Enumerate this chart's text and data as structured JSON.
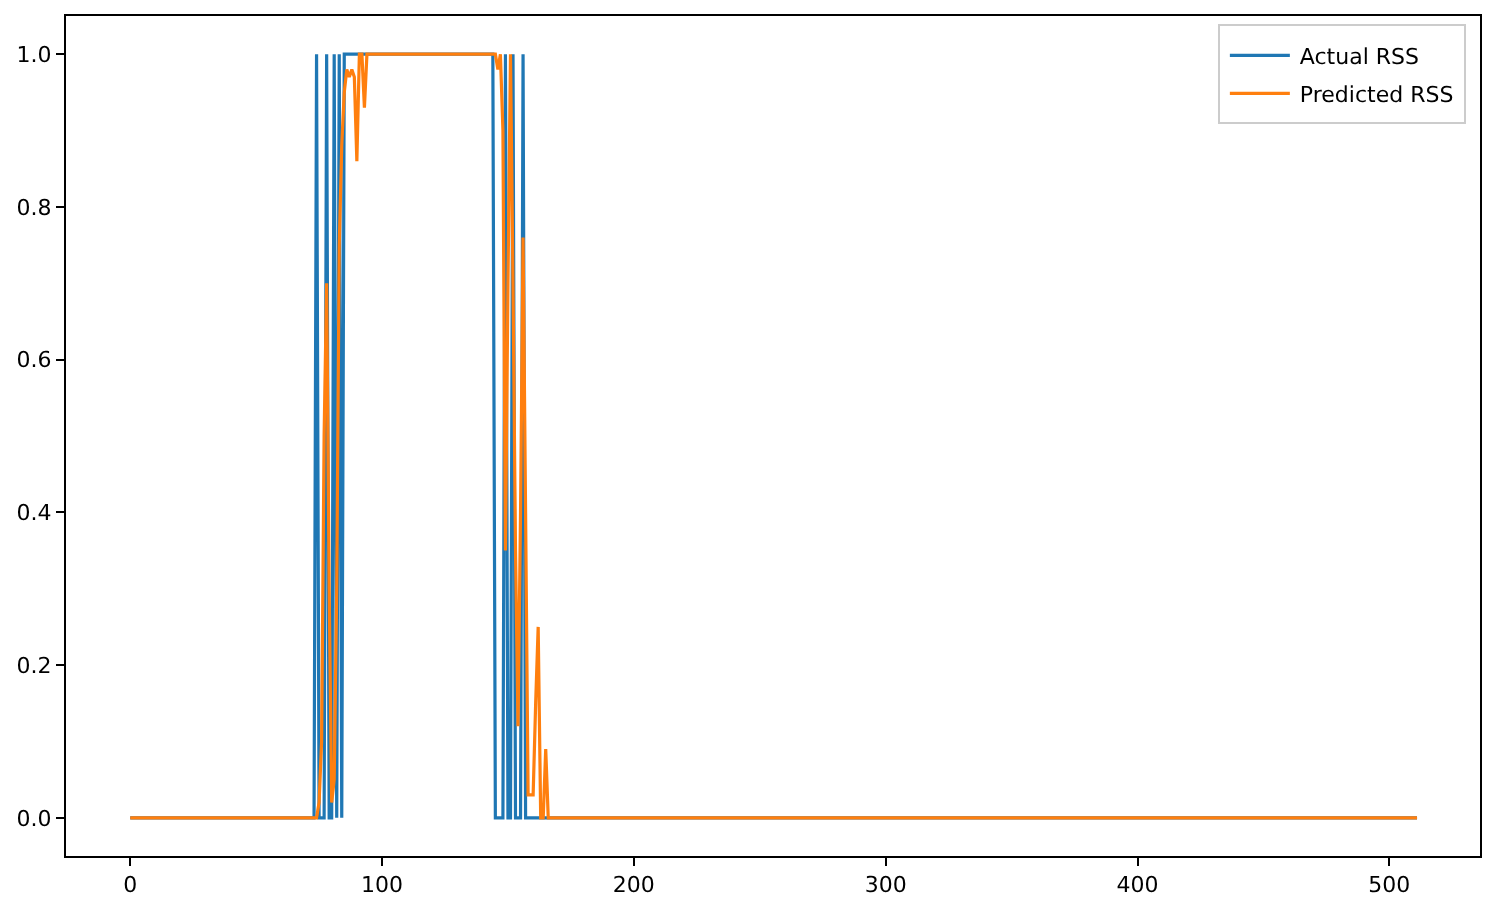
{
  "chart_data": {
    "type": "line",
    "legend": "top right",
    "grid": false,
    "xlim": [
      -25.5,
      536
    ],
    "ylim": [
      -0.05,
      1.05
    ],
    "xticks": [
      0,
      100,
      200,
      300,
      400,
      500
    ],
    "yticks": [
      {
        "value": 0,
        "label": "0.0"
      },
      {
        "value": 0.2,
        "label": "0.2"
      },
      {
        "value": 0.4,
        "label": "0.4"
      },
      {
        "value": 0.6,
        "label": "0.6"
      },
      {
        "value": 0.8,
        "label": "0.8"
      },
      {
        "value": 1,
        "label": "1.0"
      }
    ],
    "series": [
      {
        "name": "Actual RSS",
        "color": "#1f77b4",
        "x": [
          0,
          73,
          74,
          75,
          77,
          78,
          79,
          80,
          81,
          82,
          83,
          84,
          85,
          144,
          145,
          148,
          149,
          150,
          151,
          152,
          153,
          155,
          156,
          157,
          511
        ],
        "values": [
          0,
          0,
          1,
          0,
          0,
          1,
          0,
          0,
          1,
          0,
          1,
          0,
          1,
          1,
          0,
          0,
          1,
          0,
          0,
          1,
          0,
          0,
          1,
          0,
          0
        ]
      },
      {
        "name": "Predicted RSS",
        "color": "#ff7f0e",
        "x": [
          0,
          74,
          75,
          76,
          77,
          78,
          79,
          80,
          81,
          82,
          83,
          84,
          85,
          86,
          87,
          88,
          89,
          90,
          91,
          92,
          93,
          94,
          144,
          145,
          146,
          147,
          148,
          149,
          150,
          151,
          152,
          153,
          154,
          155,
          156,
          157,
          158,
          159,
          160,
          161,
          162,
          163,
          164,
          165,
          166,
          511
        ],
        "values": [
          0,
          0,
          0.02,
          0.1,
          0.5,
          0.7,
          0.3,
          0.02,
          0.05,
          0.3,
          0.75,
          0.88,
          0.95,
          0.98,
          0.97,
          0.98,
          0.97,
          0.86,
          1,
          1,
          0.93,
          1,
          1,
          1,
          0.98,
          1,
          0.9,
          0.35,
          0.7,
          1,
          0.7,
          0.35,
          0.12,
          0.4,
          0.76,
          0.4,
          0.03,
          0.03,
          0.03,
          0.15,
          0.25,
          0,
          0,
          0.09,
          0,
          0
        ]
      }
    ]
  }
}
